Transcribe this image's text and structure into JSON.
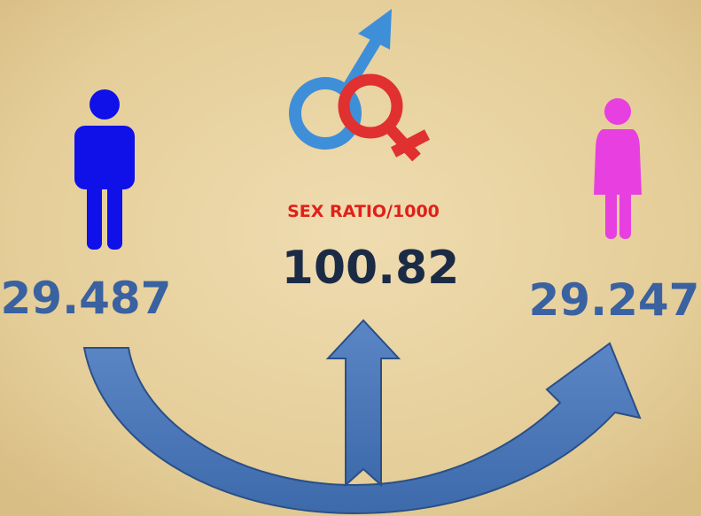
{
  "male": {
    "value": "29.487"
  },
  "female": {
    "value": "29.247"
  },
  "sex_ratio": {
    "label": "SEX RATIO/1000",
    "value": "100.82"
  }
}
